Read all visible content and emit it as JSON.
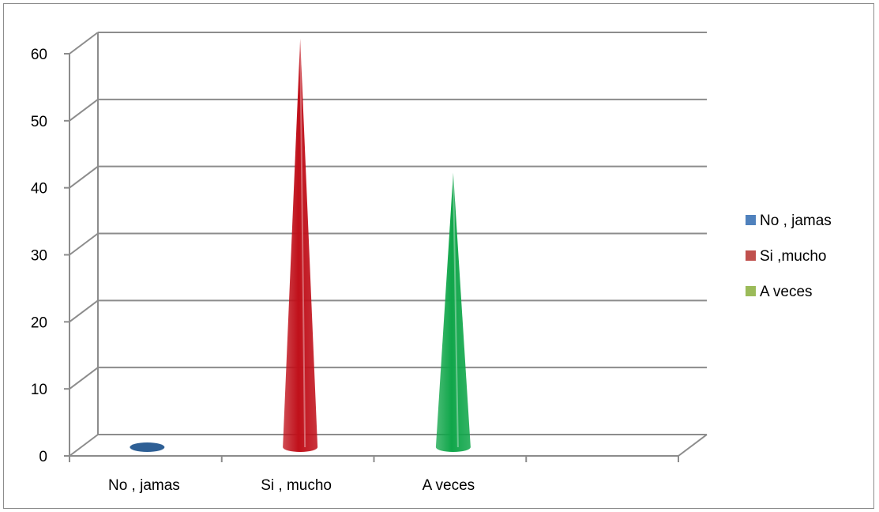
{
  "chart_data": {
    "type": "bar",
    "shape": "cone-3d",
    "title": "",
    "xlabel": "",
    "ylabel": "",
    "ylim": [
      0,
      60
    ],
    "y_ticks": [
      0,
      10,
      20,
      30,
      40,
      50,
      60
    ],
    "categories": [
      "No , jamas",
      "Si , mucho",
      "A veces"
    ],
    "values": [
      0,
      60,
      40
    ],
    "grid": true,
    "legend": {
      "placement": "right",
      "entries": [
        {
          "label": "No , jamas",
          "color": "#4f81bd"
        },
        {
          "label": "Si ,mucho",
          "color": "#c0504d"
        },
        {
          "label": "A veces",
          "color": "#9bbb59"
        }
      ]
    },
    "colors": {
      "cone_1": "#2e5f95",
      "cone_2": "#c0101a",
      "cone_3": "#10a64a",
      "gridline": "#8c8c8c"
    }
  }
}
